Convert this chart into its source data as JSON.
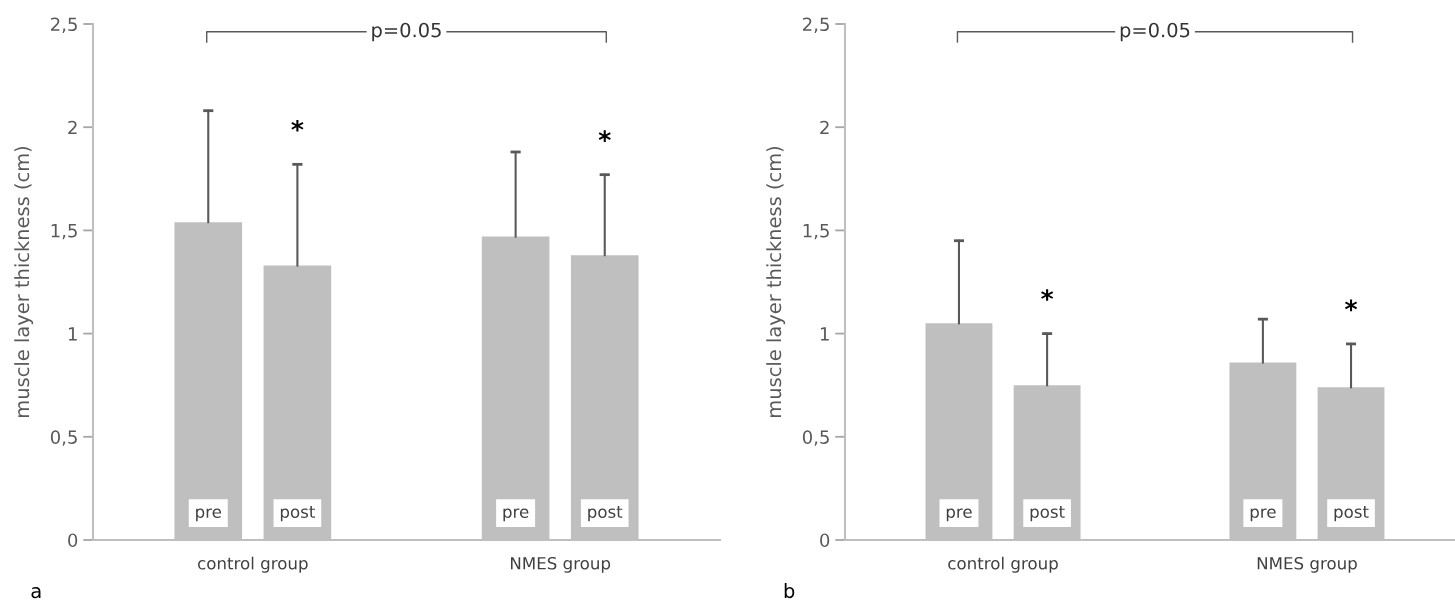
{
  "chart_data": [
    {
      "type": "bar",
      "title": "a",
      "ylabel": "muscle layer thickness (cm)",
      "categories": [
        "control group",
        "NMES group"
      ],
      "series": [
        {
          "name": "pre",
          "color": "#bfbfbf",
          "values": [
            1.54,
            1.47
          ],
          "errors": [
            [
              1.54,
              2.08
            ],
            [
              1.47,
              1.88
            ]
          ]
        },
        {
          "name": "post",
          "color": "#bfbfbf",
          "values": [
            1.33,
            1.38
          ],
          "errors": [
            [
              1.33,
              1.82
            ],
            [
              1.38,
              1.77
            ]
          ]
        }
      ],
      "ylim": [
        0,
        2.5
      ],
      "yticks": [
        0,
        {
          "value": 0.5,
          "label": "0,5"
        },
        1,
        {
          "value": 1.5,
          "label": "1,5"
        },
        2,
        {
          "value": 2.5,
          "label": "2,5"
        }
      ],
      "grid": false,
      "legend": false,
      "annotations": [
        "p=0.05",
        "*",
        "*"
      ]
    },
    {
      "type": "bar",
      "title": "b",
      "ylabel": "muscle layer thickness (cm)",
      "categories": [
        "control group",
        "NMES group"
      ],
      "series": [
        {
          "name": "pre",
          "color": "#bfbfbf",
          "values": [
            1.05,
            0.86
          ],
          "errors": [
            [
              1.05,
              1.45
            ],
            [
              0.86,
              1.07
            ]
          ]
        },
        {
          "name": "post",
          "color": "#bfbfbf",
          "values": [
            0.75,
            0.74
          ],
          "errors": [
            [
              0.75,
              1.0
            ],
            [
              0.74,
              0.95
            ]
          ]
        }
      ],
      "ylim": [
        0,
        2.5
      ],
      "yticks": [
        0,
        {
          "value": 0.5,
          "label": "0,5"
        },
        1,
        {
          "value": 1.5,
          "label": "1,5"
        },
        2,
        {
          "value": 2.5,
          "label": "2,5"
        }
      ],
      "grid": false,
      "legend": false,
      "annotations": [
        "p=0.05",
        "*",
        "*"
      ]
    }
  ]
}
